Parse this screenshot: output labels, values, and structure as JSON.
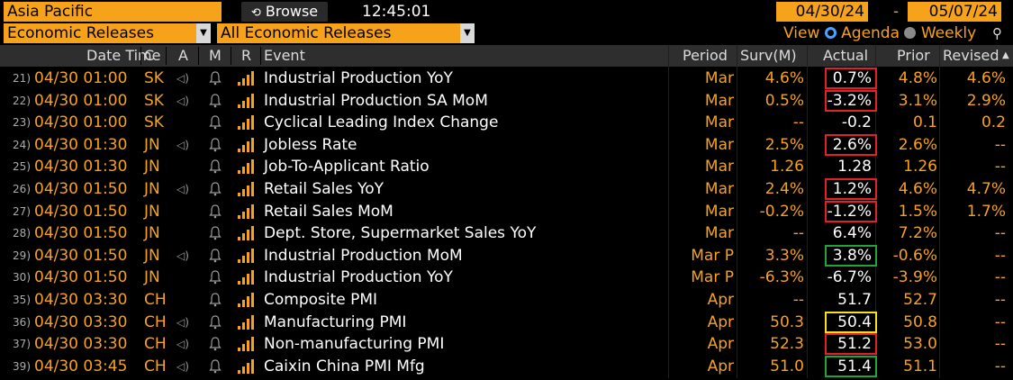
{
  "toolbar": {
    "region": "Asia Pacific",
    "browse_label": "Browse",
    "time": "12:45:01",
    "start_date": "04/30/24",
    "date_separator": "-",
    "end_date": "05/07/24",
    "filter1": "Economic Releases",
    "filter2": "All Economic Releases",
    "view_label": "View",
    "view_agenda": "Agenda",
    "view_weekly": "Weekly"
  },
  "columns": {
    "datetime": "Date Time",
    "country": "C",
    "a": "A",
    "m": "M",
    "r": "R",
    "event": "Event",
    "period": "Period",
    "survey": "Surv(M)",
    "actual": "Actual",
    "prior": "Prior",
    "revised": "Revised"
  },
  "colors": {
    "accent": "#f7a21b",
    "highlight_red": "#e0202a",
    "highlight_green": "#22a33a",
    "highlight_yellow": "#f1e21a"
  },
  "rows": [
    {
      "num": "21)",
      "dt": "04/30 01:00",
      "c": "SK",
      "audio": true,
      "event": "Industrial Production YoY",
      "period": "Mar",
      "surv": "4.6%",
      "actual": "0.7%",
      "prior": "4.8%",
      "revised": "4.6%",
      "box": "red"
    },
    {
      "num": "22)",
      "dt": "04/30 01:00",
      "c": "SK",
      "audio": true,
      "event": "Industrial Production SA MoM",
      "period": "Mar",
      "surv": "0.5%",
      "actual": "-3.2%",
      "prior": "3.1%",
      "revised": "2.9%",
      "box": "red"
    },
    {
      "num": "23)",
      "dt": "04/30 01:00",
      "c": "SK",
      "audio": false,
      "event": "Cyclical Leading Index Change",
      "period": "Mar",
      "surv": "--",
      "actual": "-0.2",
      "prior": "0.1",
      "revised": "0.2",
      "box": ""
    },
    {
      "num": "24)",
      "dt": "04/30 01:30",
      "c": "JN",
      "audio": true,
      "event": "Jobless Rate",
      "period": "Mar",
      "surv": "2.5%",
      "actual": "2.6%",
      "prior": "2.6%",
      "revised": "--",
      "box": "red"
    },
    {
      "num": "25)",
      "dt": "04/30 01:30",
      "c": "JN",
      "audio": false,
      "event": "Job-To-Applicant Ratio",
      "period": "Mar",
      "surv": "1.26",
      "actual": "1.28",
      "prior": "1.26",
      "revised": "--",
      "box": ""
    },
    {
      "num": "26)",
      "dt": "04/30 01:50",
      "c": "JN",
      "audio": true,
      "event": "Retail Sales YoY",
      "period": "Mar",
      "surv": "2.4%",
      "actual": "1.2%",
      "prior": "4.6%",
      "revised": "4.7%",
      "box": "red"
    },
    {
      "num": "27)",
      "dt": "04/30 01:50",
      "c": "JN",
      "audio": false,
      "event": "Retail Sales MoM",
      "period": "Mar",
      "surv": "-0.2%",
      "actual": "-1.2%",
      "prior": "1.5%",
      "revised": "1.7%",
      "box": "red"
    },
    {
      "num": "28)",
      "dt": "04/30 01:50",
      "c": "JN",
      "audio": false,
      "event": "Dept. Store, Supermarket Sales YoY",
      "period": "Mar",
      "surv": "--",
      "actual": "6.4%",
      "prior": "7.2%",
      "revised": "--",
      "box": ""
    },
    {
      "num": "29)",
      "dt": "04/30 01:50",
      "c": "JN",
      "audio": true,
      "event": "Industrial Production MoM",
      "period": "Mar P",
      "surv": "3.3%",
      "actual": "3.8%",
      "prior": "-0.6%",
      "revised": "--",
      "box": "green"
    },
    {
      "num": "30)",
      "dt": "04/30 01:50",
      "c": "JN",
      "audio": false,
      "event": "Industrial Production YoY",
      "period": "Mar P",
      "surv": "-6.3%",
      "actual": "-6.7%",
      "prior": "-3.9%",
      "revised": "--",
      "box": ""
    },
    {
      "num": "35)",
      "dt": "04/30 03:30",
      "c": "CH",
      "audio": false,
      "event": "Composite PMI",
      "period": "Apr",
      "surv": "--",
      "actual": "51.7",
      "prior": "52.7",
      "revised": "--",
      "box": ""
    },
    {
      "num": "36)",
      "dt": "04/30 03:30",
      "c": "CH",
      "audio": true,
      "event": "Manufacturing PMI",
      "period": "Apr",
      "surv": "50.3",
      "actual": "50.4",
      "prior": "50.8",
      "revised": "--",
      "box": "yellow"
    },
    {
      "num": "37)",
      "dt": "04/30 03:30",
      "c": "CH",
      "audio": true,
      "event": "Non-manufacturing PMI",
      "period": "Apr",
      "surv": "52.3",
      "actual": "51.2",
      "prior": "53.0",
      "revised": "--",
      "box": "red"
    },
    {
      "num": "39)",
      "dt": "04/30 03:45",
      "c": "CH",
      "audio": true,
      "event": "Caixin China PMI Mfg",
      "period": "Apr",
      "surv": "51.0",
      "actual": "51.4",
      "prior": "51.1",
      "revised": "--",
      "box": "green"
    }
  ]
}
